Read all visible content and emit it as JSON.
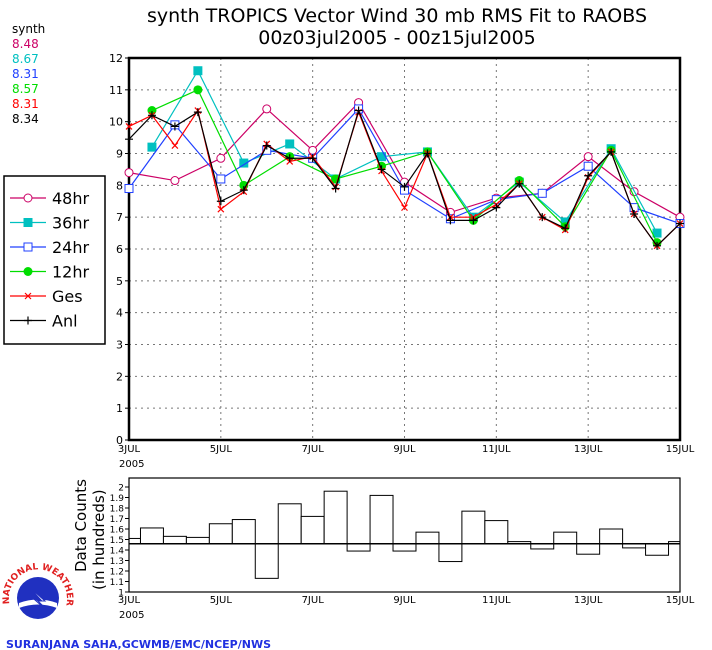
{
  "chart_data": [
    {
      "type": "line",
      "title": "synth TROPICS Vector Wind 30 mb RMS Fit to RAOBS",
      "subtitle": "00z03jul2005 - 00z15jul2005",
      "xlabel": "",
      "ylabel": "",
      "ylim": [
        0,
        12
      ],
      "yticks": [
        "0",
        "1",
        "2",
        "3",
        "4",
        "5",
        "6",
        "7",
        "8",
        "9",
        "10",
        "11",
        "12"
      ],
      "x_ticks": [
        "3JUL",
        "5JUL",
        "7JUL",
        "9JUL",
        "11JUL",
        "13JUL",
        "15JUL"
      ],
      "x_year": "2005",
      "grid": true,
      "legend_placement": "left",
      "stats_header": "synth",
      "series": [
        {
          "name": "48hr",
          "color": "#cc0066",
          "marker": "open-circle",
          "stat": "8.48",
          "x": [
            3,
            4,
            5,
            6,
            7,
            8,
            9,
            10,
            11,
            12,
            13,
            14,
            15
          ],
          "values": [
            8.4,
            8.15,
            8.85,
            10.4,
            9.1,
            10.6,
            8.1,
            7.15,
            7.6,
            7.75,
            8.9,
            7.8,
            7.0
          ]
        },
        {
          "name": "36hr",
          "color": "#00c0c0",
          "marker": "filled-square",
          "stat": "8.67",
          "x": [
            3.5,
            4.5,
            5.5,
            6.5,
            7.5,
            8.5,
            9.5,
            10.5,
            11.5,
            12.5,
            13.5,
            14.5
          ],
          "values": [
            9.2,
            11.6,
            8.7,
            9.3,
            8.2,
            8.9,
            9.05,
            7.0,
            8.1,
            6.85,
            9.15,
            6.5
          ]
        },
        {
          "name": "24hr",
          "color": "#2040ff",
          "marker": "open-square",
          "stat": "8.31",
          "x": [
            3,
            4,
            5,
            6,
            7,
            8,
            9,
            10,
            11,
            12,
            13,
            14,
            15
          ],
          "values": [
            7.9,
            9.9,
            8.2,
            9.1,
            8.85,
            10.4,
            7.85,
            6.95,
            7.55,
            7.75,
            8.6,
            7.3,
            6.8
          ]
        },
        {
          "name": "12hr",
          "color": "#00dd00",
          "marker": "filled-circle",
          "stat": "8.57",
          "x": [
            3.5,
            4.5,
            5.5,
            6.5,
            7.5,
            8.5,
            9.5,
            10.5,
            11.5,
            12.5,
            13.5,
            14.5
          ],
          "values": [
            10.35,
            11.0,
            8.0,
            8.9,
            8.2,
            8.6,
            9.05,
            6.9,
            8.15,
            6.7,
            9.1,
            6.2
          ]
        },
        {
          "name": "Ges",
          "color": "#ff0000",
          "marker": "x",
          "stat": "8.31",
          "x": [
            3,
            3.5,
            4,
            4.5,
            5,
            5.5,
            6,
            6.5,
            7,
            7.5,
            8,
            8.5,
            9,
            9.5,
            10,
            10.5,
            11,
            11.5,
            12,
            12.5,
            13,
            13.5,
            14,
            14.5,
            15
          ],
          "values": [
            9.85,
            10.2,
            9.25,
            10.35,
            7.25,
            7.8,
            9.3,
            8.75,
            8.9,
            7.95,
            10.3,
            8.45,
            7.3,
            9.0,
            7.0,
            7.0,
            7.4,
            8.05,
            7.0,
            6.6,
            8.25,
            9.05,
            7.1,
            6.1,
            6.8
          ]
        },
        {
          "name": "Anl",
          "color": "#000000",
          "marker": "plus",
          "stat": "8.34",
          "x": [
            3,
            3.5,
            4,
            4.5,
            5,
            5.5,
            6,
            6.5,
            7,
            7.5,
            8,
            8.5,
            9,
            9.5,
            10,
            10.5,
            11,
            11.5,
            12,
            12.5,
            13,
            13.5,
            14,
            14.5,
            15
          ],
          "values": [
            9.45,
            10.2,
            9.85,
            10.3,
            7.5,
            7.85,
            9.25,
            8.85,
            8.85,
            7.9,
            10.35,
            8.5,
            7.95,
            9.0,
            6.9,
            6.9,
            7.3,
            8.05,
            7.0,
            6.65,
            8.3,
            9.05,
            7.1,
            6.1,
            6.8
          ]
        }
      ]
    },
    {
      "type": "bar",
      "ylabel": "Data Counts",
      "ylabel2": "(in hundreds)",
      "ylim": [
        1,
        2.1
      ],
      "yticks": [
        "1",
        "1.1",
        "1.2",
        "1.3",
        "1.4",
        "1.5",
        "1.6",
        "1.7",
        "1.8",
        "1.9",
        "2"
      ],
      "x_ticks": [
        "3JUL",
        "5JUL",
        "7JUL",
        "9JUL",
        "11JUL",
        "13JUL",
        "15JUL"
      ],
      "x_year": "2005",
      "baseline": 1.46,
      "x": [
        3,
        3.5,
        4,
        4.5,
        5,
        5.5,
        6,
        6.5,
        7,
        7.5,
        8,
        8.5,
        9,
        9.5,
        10,
        10.5,
        11,
        11.5,
        12,
        12.5,
        13,
        13.5,
        14,
        14.5,
        15
      ],
      "values": [
        1.51,
        1.61,
        1.53,
        1.52,
        1.65,
        1.69,
        1.13,
        1.84,
        1.72,
        1.96,
        1.39,
        1.92,
        1.39,
        1.57,
        1.29,
        1.77,
        1.68,
        1.48,
        1.41,
        1.57,
        1.36,
        1.6,
        1.42,
        1.35,
        1.48
      ]
    }
  ],
  "logo": {
    "text": "NATIONAL WEATHER SERVICE"
  },
  "credit": "SURANJANA SAHA,GCWMB/EMC/NCEP/NWS"
}
